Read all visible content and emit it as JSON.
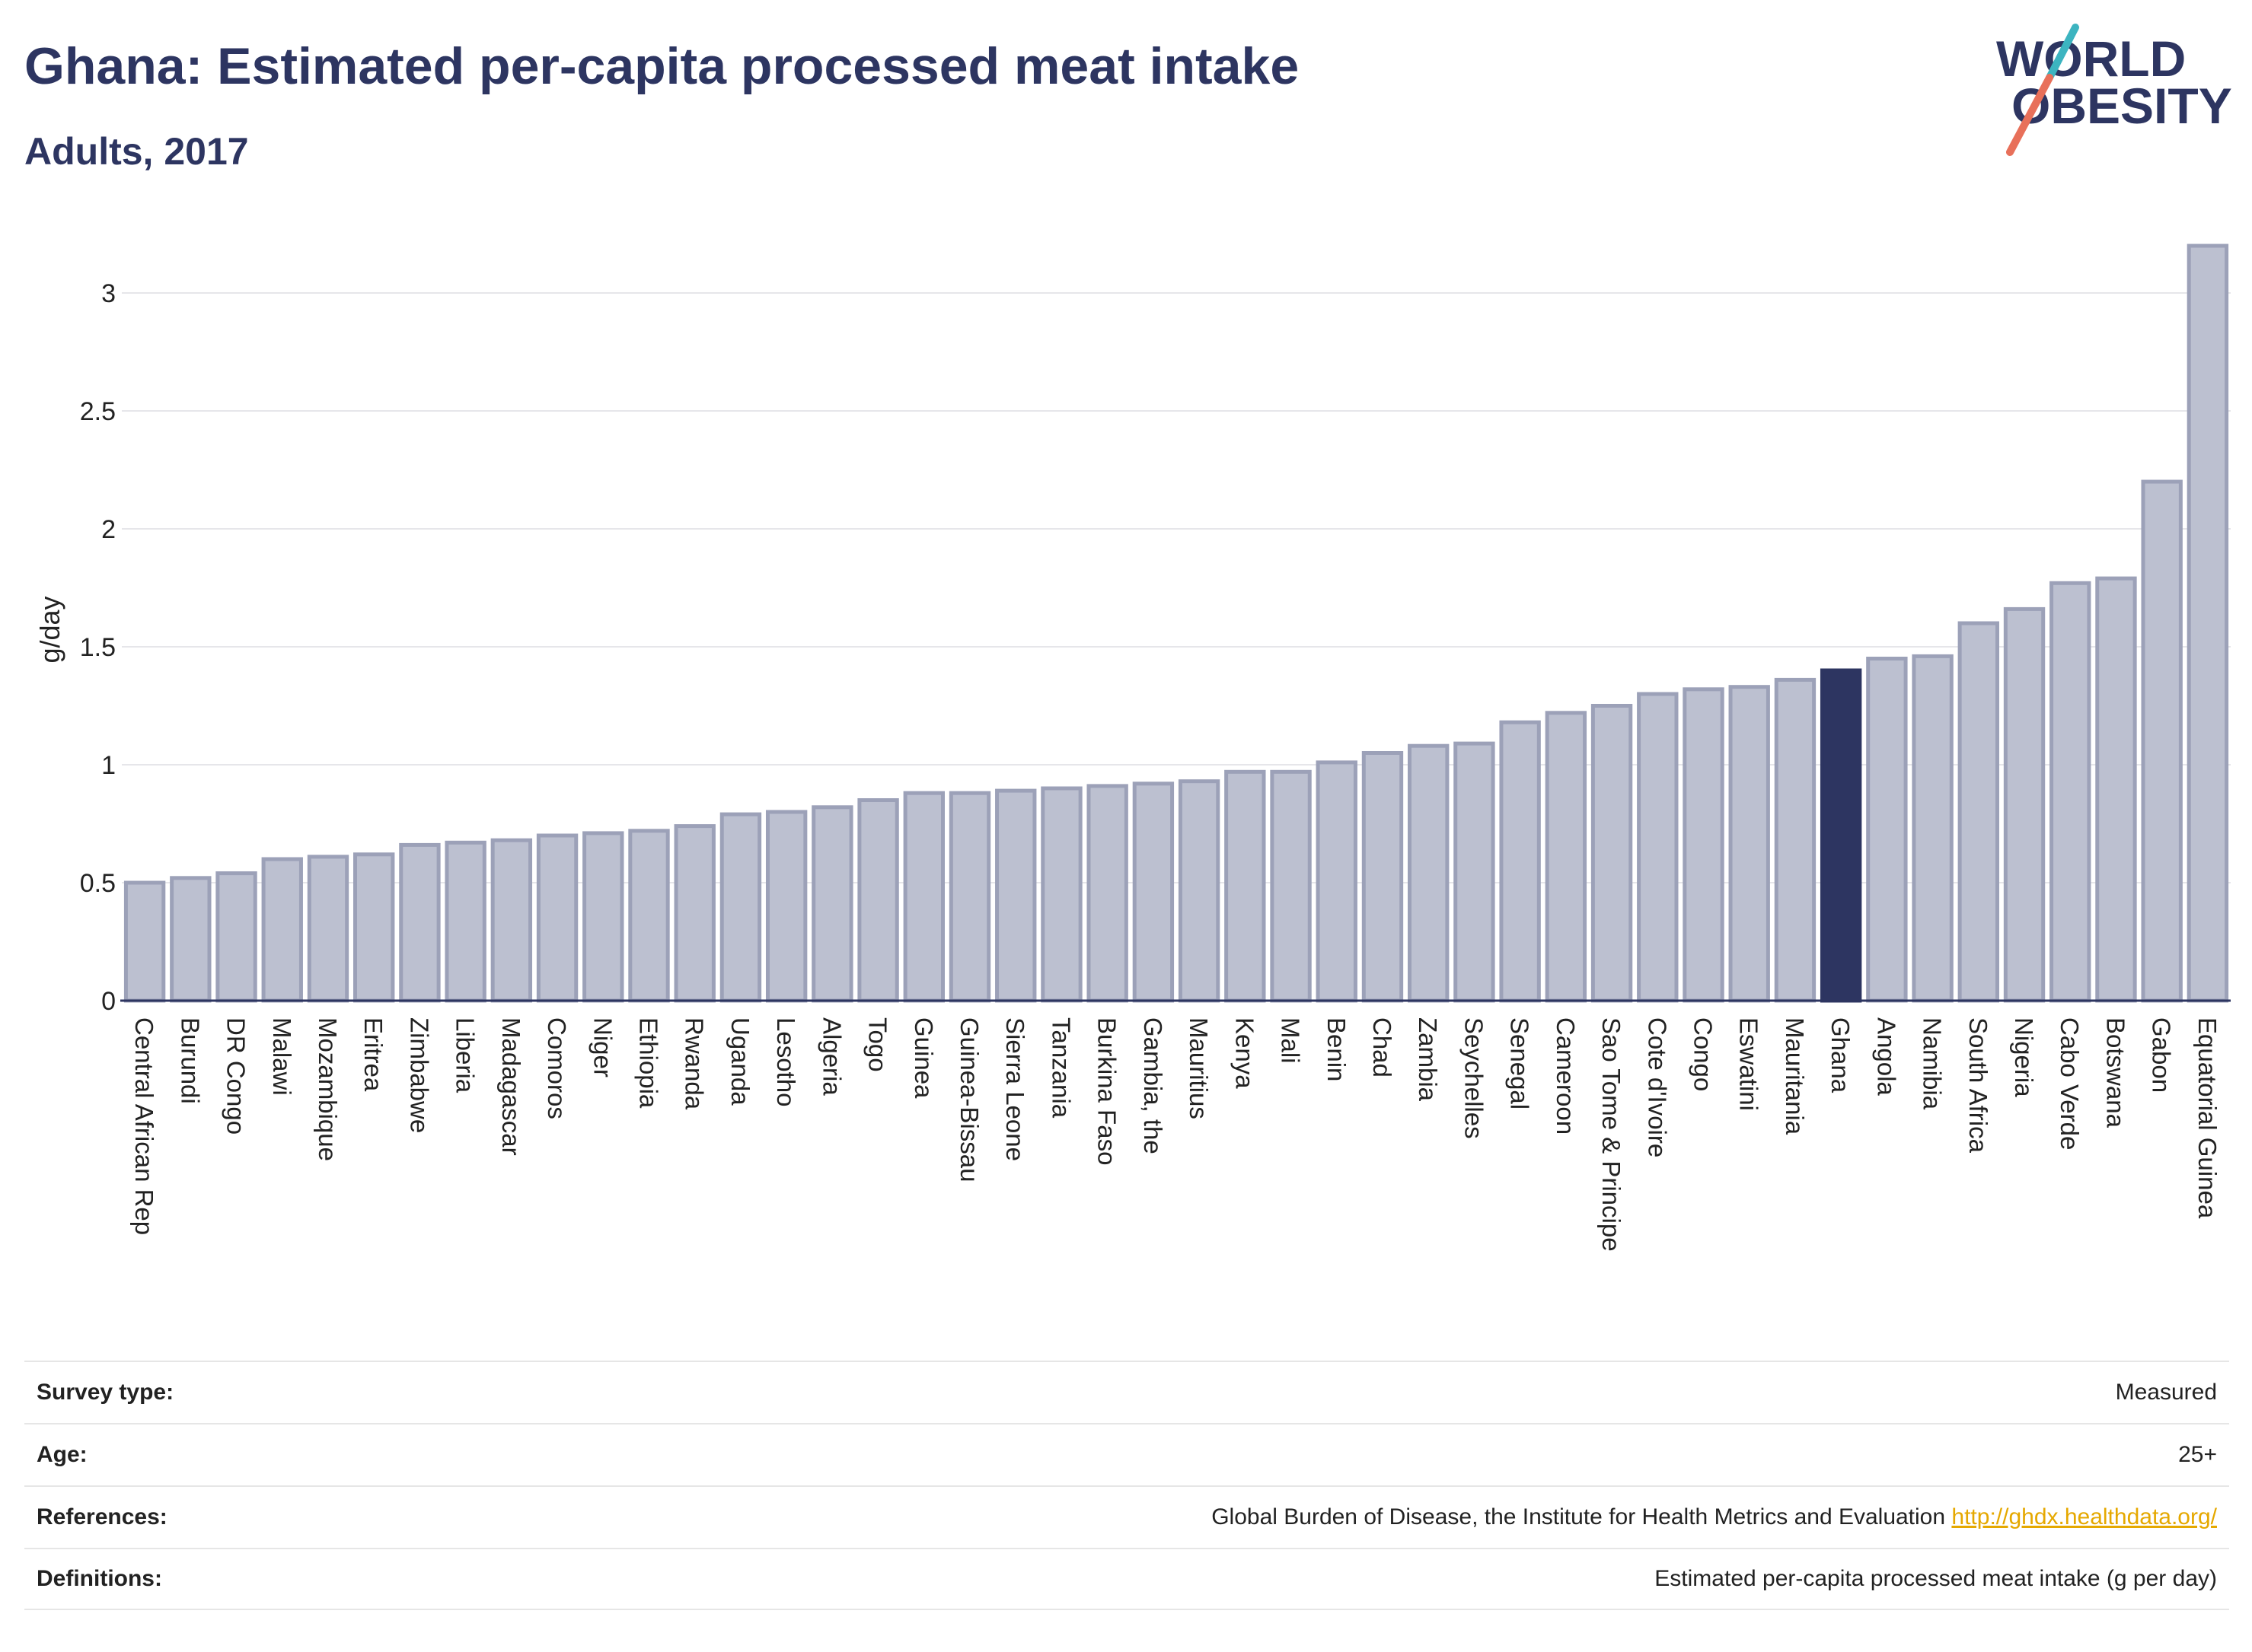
{
  "header": {
    "title": "Ghana: Estimated per-capita processed meat intake",
    "subtitle": "Adults, 2017"
  },
  "logo": {
    "line1": "WORLD",
    "line2": "OBESITY",
    "colors": {
      "text": "#2d3561",
      "slash_teal": "#3cb4c0",
      "slash_coral": "#e8705a"
    }
  },
  "chart_data": {
    "type": "bar",
    "ylabel": "g/day",
    "xlabel": "",
    "ylim": [
      0,
      3.2
    ],
    "yticks": [
      0,
      0.5,
      1,
      1.5,
      2,
      2.5,
      3
    ],
    "ytick_labels": [
      "0",
      "0.5",
      "1",
      "1.5",
      "2",
      "2.5",
      "3"
    ],
    "grid": true,
    "highlight": "Ghana",
    "colors": {
      "bar": "#bcc0d0",
      "bar_border": "#9ca1b8",
      "highlight": "#2d3561"
    },
    "categories": [
      "Central African Rep",
      "Burundi",
      "DR Congo",
      "Malawi",
      "Mozambique",
      "Eritrea",
      "Zimbabwe",
      "Liberia",
      "Madagascar",
      "Comoros",
      "Niger",
      "Ethiopia",
      "Rwanda",
      "Uganda",
      "Lesotho",
      "Algeria",
      "Togo",
      "Guinea",
      "Guinea-Bissau",
      "Sierra Leone",
      "Tanzania",
      "Burkina Faso",
      "Gambia, the",
      "Mauritius",
      "Kenya",
      "Mali",
      "Benin",
      "Chad",
      "Zambia",
      "Seychelles",
      "Senegal",
      "Cameroon",
      "Sao Tome & Principe",
      "Cote d'Ivoire",
      "Congo",
      "Eswatini",
      "Mauritania",
      "Ghana",
      "Angola",
      "Namibia",
      "South Africa",
      "Nigeria",
      "Cabo Verde",
      "Botswana",
      "Gabon",
      "Equatorial Guinea"
    ],
    "values": [
      0.5,
      0.52,
      0.54,
      0.6,
      0.61,
      0.62,
      0.66,
      0.67,
      0.68,
      0.7,
      0.71,
      0.72,
      0.74,
      0.79,
      0.8,
      0.82,
      0.85,
      0.88,
      0.88,
      0.89,
      0.9,
      0.91,
      0.92,
      0.93,
      0.97,
      0.97,
      1.01,
      1.05,
      1.08,
      1.09,
      1.18,
      1.22,
      1.25,
      1.3,
      1.32,
      1.33,
      1.36,
      1.4,
      1.45,
      1.46,
      1.6,
      1.66,
      1.77,
      1.79,
      2.2,
      3.2
    ]
  },
  "info": [
    {
      "key": "Survey type:",
      "value": "Measured"
    },
    {
      "key": "Age:",
      "value": "25+"
    },
    {
      "key": "References:",
      "value": "Global Burden of Disease, the Institute for Health Metrics and Evaluation",
      "link": "http://ghdx.healthdata.org/"
    },
    {
      "key": "Definitions:",
      "value": "Estimated per-capita processed meat intake (g per day)"
    }
  ]
}
